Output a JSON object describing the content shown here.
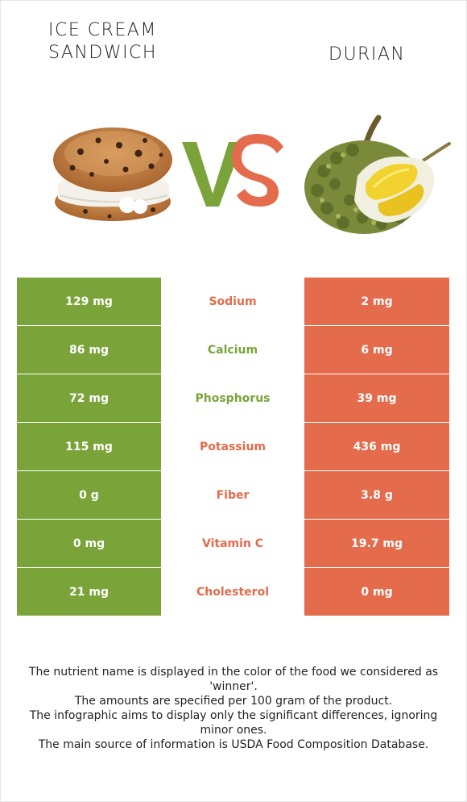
{
  "header": {
    "left_title_line1": "ICE CREAM",
    "left_title_line2": "SANDWICH",
    "right_title": "DURIAN",
    "vs_left": "V",
    "vs_right": "S"
  },
  "colors": {
    "left_food": "#7aa43a",
    "right_food": "#e46b4b"
  },
  "rows": [
    {
      "left": "129 mg",
      "nutrient": "Sodium",
      "right": "2 mg",
      "winner": "right"
    },
    {
      "left": "86 mg",
      "nutrient": "Calcium",
      "right": "6 mg",
      "winner": "left"
    },
    {
      "left": "72 mg",
      "nutrient": "Phosphorus",
      "right": "39 mg",
      "winner": "left"
    },
    {
      "left": "115 mg",
      "nutrient": "Potassium",
      "right": "436 mg",
      "winner": "right"
    },
    {
      "left": "0 g",
      "nutrient": "Fiber",
      "right": "3.8 g",
      "winner": "right"
    },
    {
      "left": "0 mg",
      "nutrient": "Vitamin C",
      "right": "19.7 mg",
      "winner": "right"
    },
    {
      "left": "21 mg",
      "nutrient": "Cholesterol",
      "right": "0 mg",
      "winner": "right"
    }
  ],
  "notes": {
    "line1": "The nutrient name is displayed in the color of the food we considered as 'winner'.",
    "line2": "The amounts are specified per 100 gram of the product.",
    "line3": "The infographic aims to display only the significant differences, ignoring minor ones.",
    "line4": "The main source of information is USDA Food Composition Database."
  },
  "icons": {
    "left_image": "ice-cream-sandwich-image",
    "right_image": "durian-image"
  }
}
